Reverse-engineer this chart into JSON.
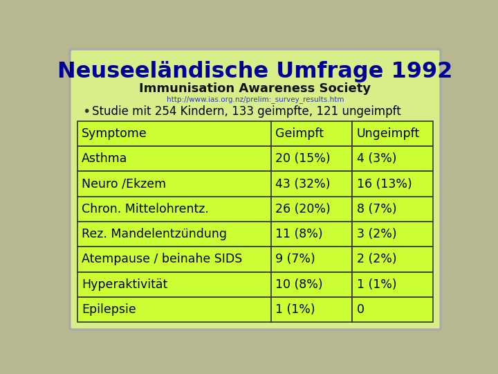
{
  "title": "Neuseeländische Umfrage 1992",
  "subtitle": "Immunisation Awareness Society",
  "url": "http://www.ias.org.nz/prelim:_survey_results.htm",
  "bullet": "Studie mit 254 Kindern, 133 geimpfte, 121 ungeimpft",
  "col_headers": [
    "Symptome",
    "Geimpft",
    "Ungeimpft"
  ],
  "rows": [
    [
      "Asthma",
      "20 (15%)",
      "4 (3%)"
    ],
    [
      "Neuro /Ekzem",
      "43 (32%)",
      "16 (13%)"
    ],
    [
      "Chron. Mittelohrentz.",
      "26 (20%)",
      "8 (7%)"
    ],
    [
      "Rez. Mandelentzündung",
      "11 (8%)",
      "3 (2%)"
    ],
    [
      "Atempause / beinahe SIDS",
      "9 (7%)",
      "2 (2%)"
    ],
    [
      "Hyperaktivität",
      "10 (8%)",
      "1 (1%)"
    ],
    [
      "Epilepsie",
      "1 (1%)",
      "0"
    ]
  ],
  "bg_color": "#d8ee88",
  "table_bg": "#ccff33",
  "border_color": "#333333",
  "title_color": "#000099",
  "subtitle_color": "#111111",
  "url_color": "#3333cc",
  "text_color": "#000000",
  "bullet_color": "#333333",
  "outer_bg": "#b8b890",
  "fig_bg": "#d8ee88"
}
